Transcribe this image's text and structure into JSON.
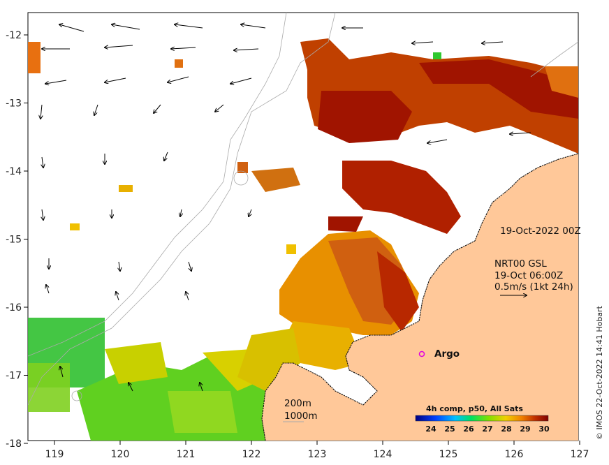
{
  "map": {
    "x_ticks": [
      "119",
      "120",
      "121",
      "122",
      "123",
      "124",
      "125",
      "126",
      "127"
    ],
    "y_ticks": [
      "-12",
      "-13",
      "-14",
      "-15",
      "-16",
      "-17",
      "-18"
    ]
  },
  "annotations": {
    "date_label": "19-Oct-2022 00Z",
    "current_title": "NRT00 GSL",
    "current_time": "19-Oct 06:00Z",
    "current_scale": "0.5m/s (1kt 24h)",
    "argo_label": "Argo",
    "contour_200": "200m",
    "contour_1000": "1000m"
  },
  "colorbar": {
    "title": "4h comp, p50, All Sats",
    "ticks": [
      "24",
      "25",
      "26",
      "27",
      "28",
      "29",
      "30"
    ],
    "colors": [
      "#000080",
      "#0040ff",
      "#00c0ff",
      "#00e060",
      "#80e000",
      "#f0d000",
      "#f08000",
      "#c03000",
      "#800000"
    ]
  },
  "colors": {
    "land": "#ffc899",
    "hot": "#a01400",
    "warm": "#d06010",
    "mid": "#e8a000",
    "cool": "#80d820",
    "cooler": "#30c830",
    "argo": "#e000e0"
  },
  "credit": "© IMOS 22-Oct-2022 14:41 Hobart"
}
